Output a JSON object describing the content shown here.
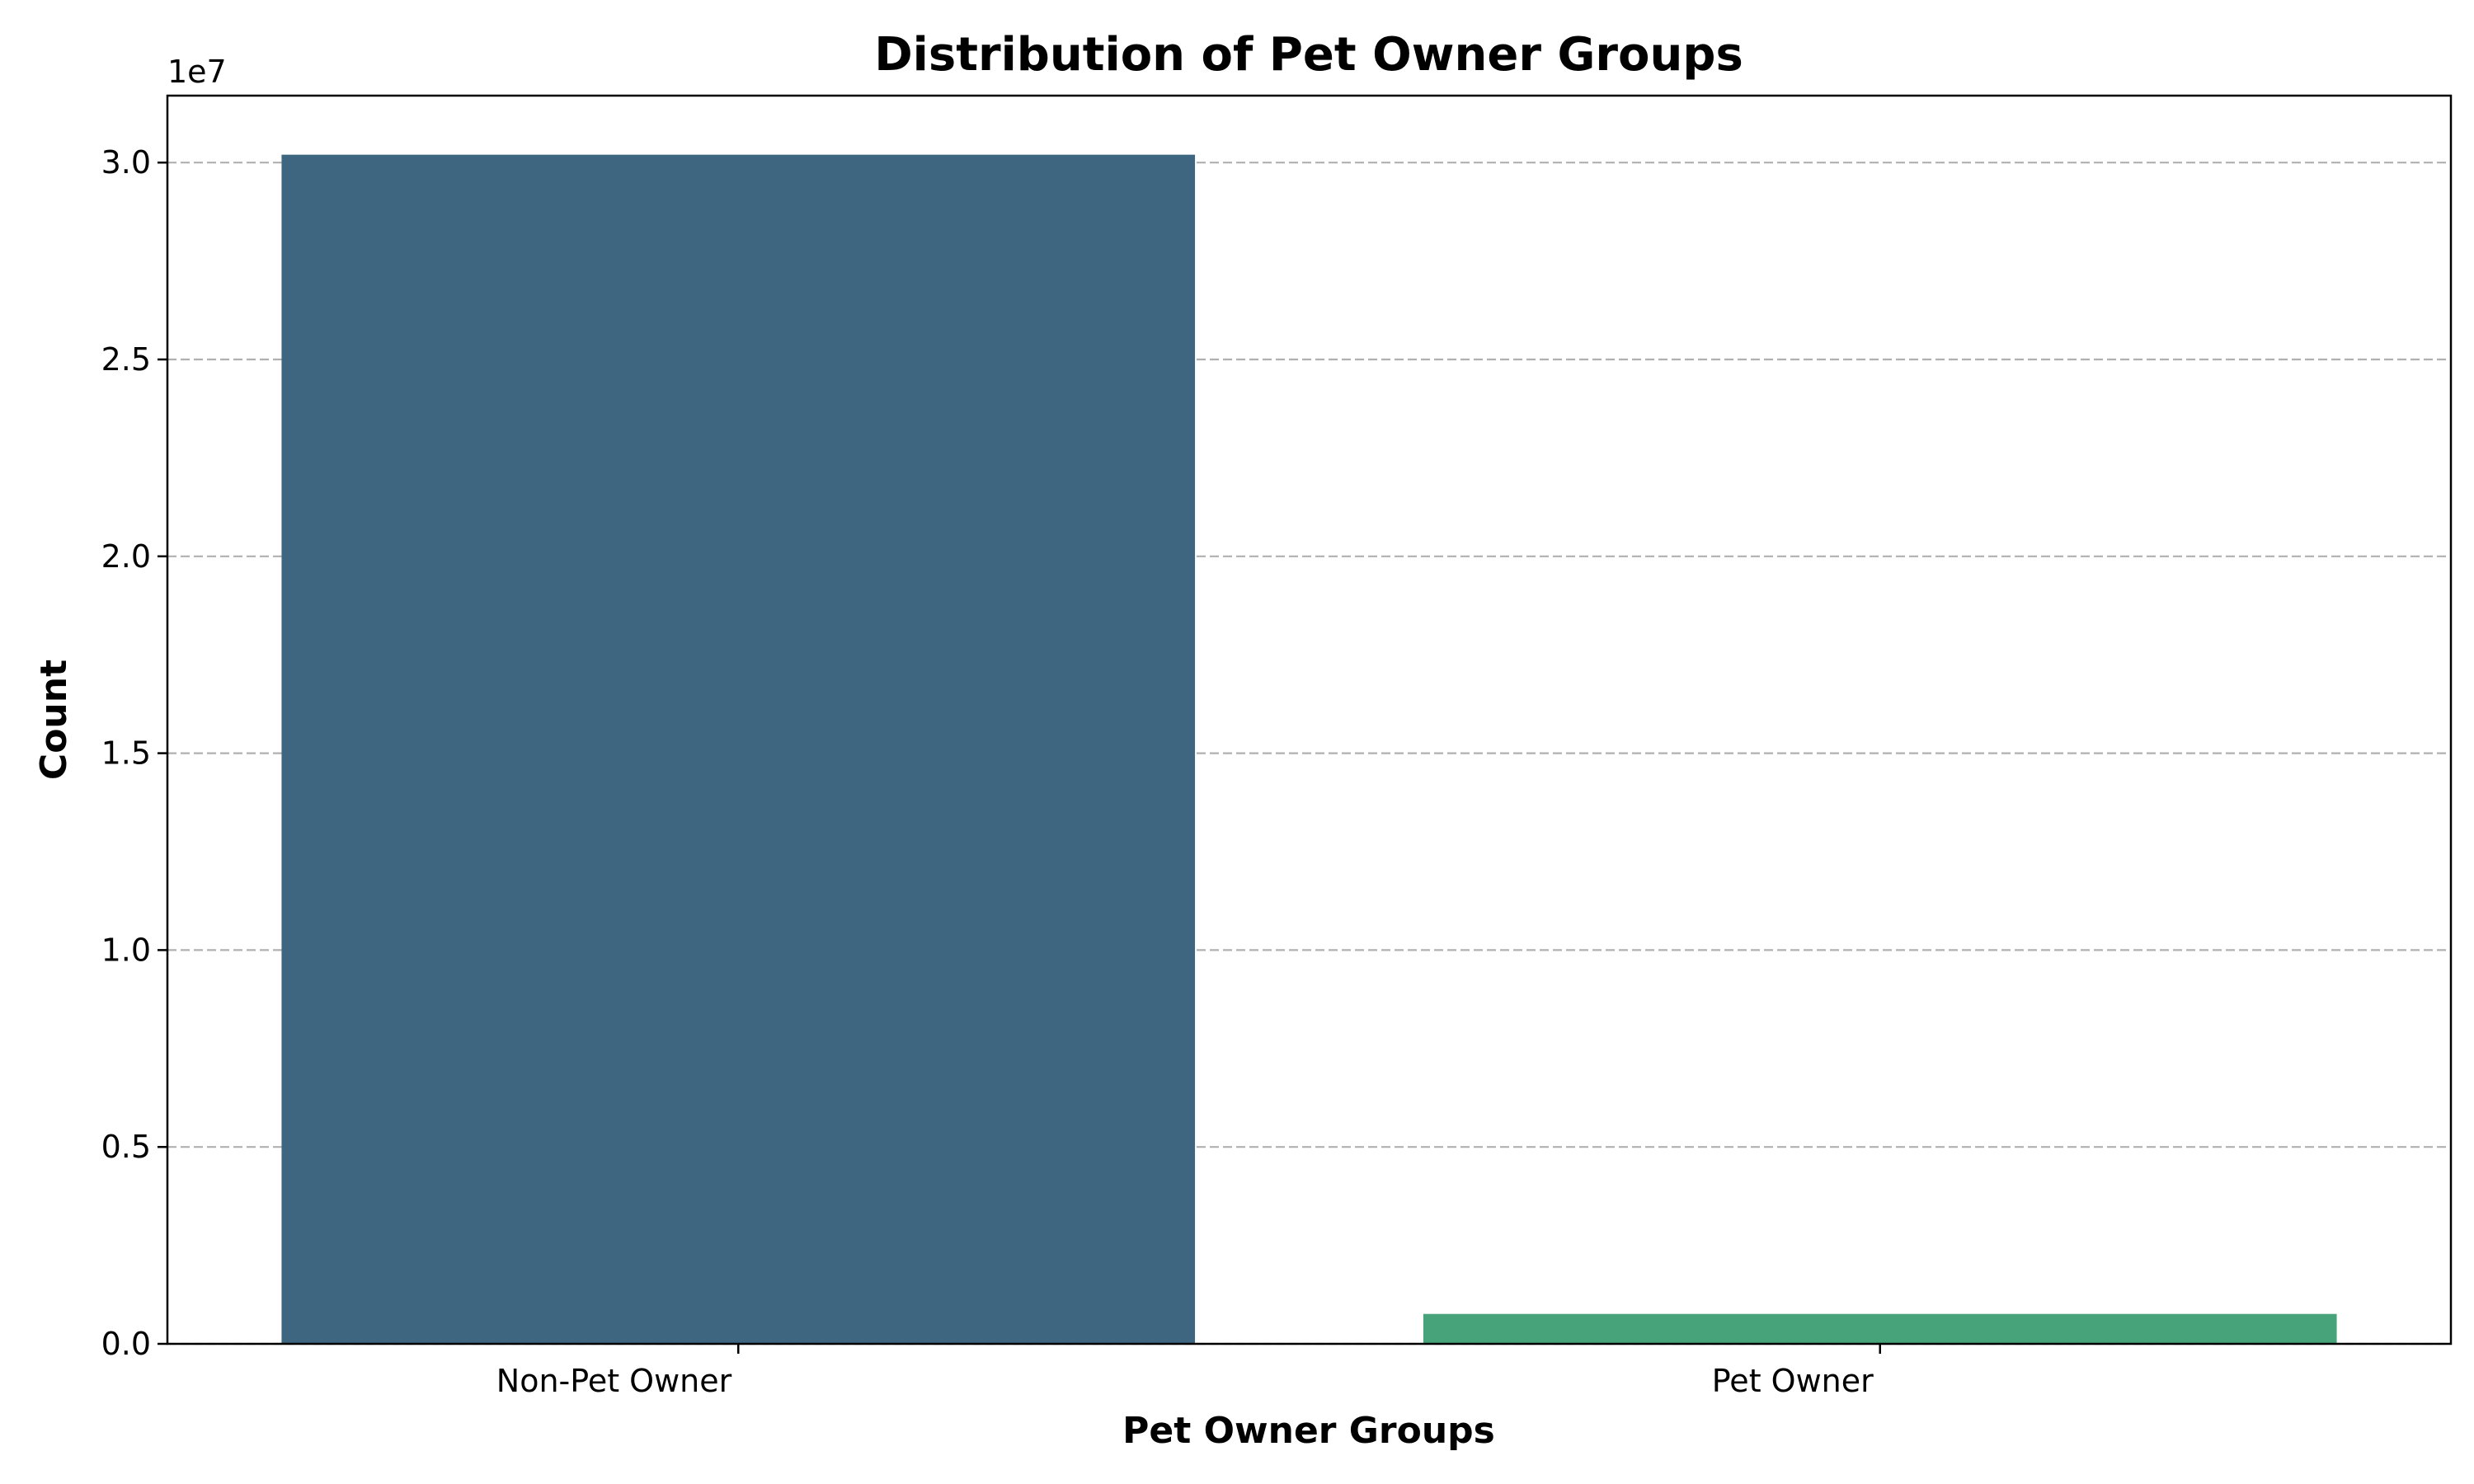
{
  "chart_data": {
    "type": "bar",
    "title": "Distribution of Pet Owner Groups",
    "xlabel": "Pet Owner Groups",
    "ylabel": "Count",
    "categories": [
      "Non-Pet Owner",
      "Pet Owner"
    ],
    "values": [
      30200000,
      760000
    ],
    "colors": [
      "#3e6680",
      "#46a37a"
    ],
    "ylim": [
      0,
      31700000
    ],
    "yticks": [
      0,
      5000000,
      10000000,
      15000000,
      20000000,
      25000000,
      30000000
    ],
    "ytick_labels": [
      "0.0",
      "0.5",
      "1.0",
      "1.5",
      "2.0",
      "2.5",
      "3.0"
    ],
    "y_offset_label": "1e7",
    "grid": "y, dashed",
    "legend": "none"
  }
}
